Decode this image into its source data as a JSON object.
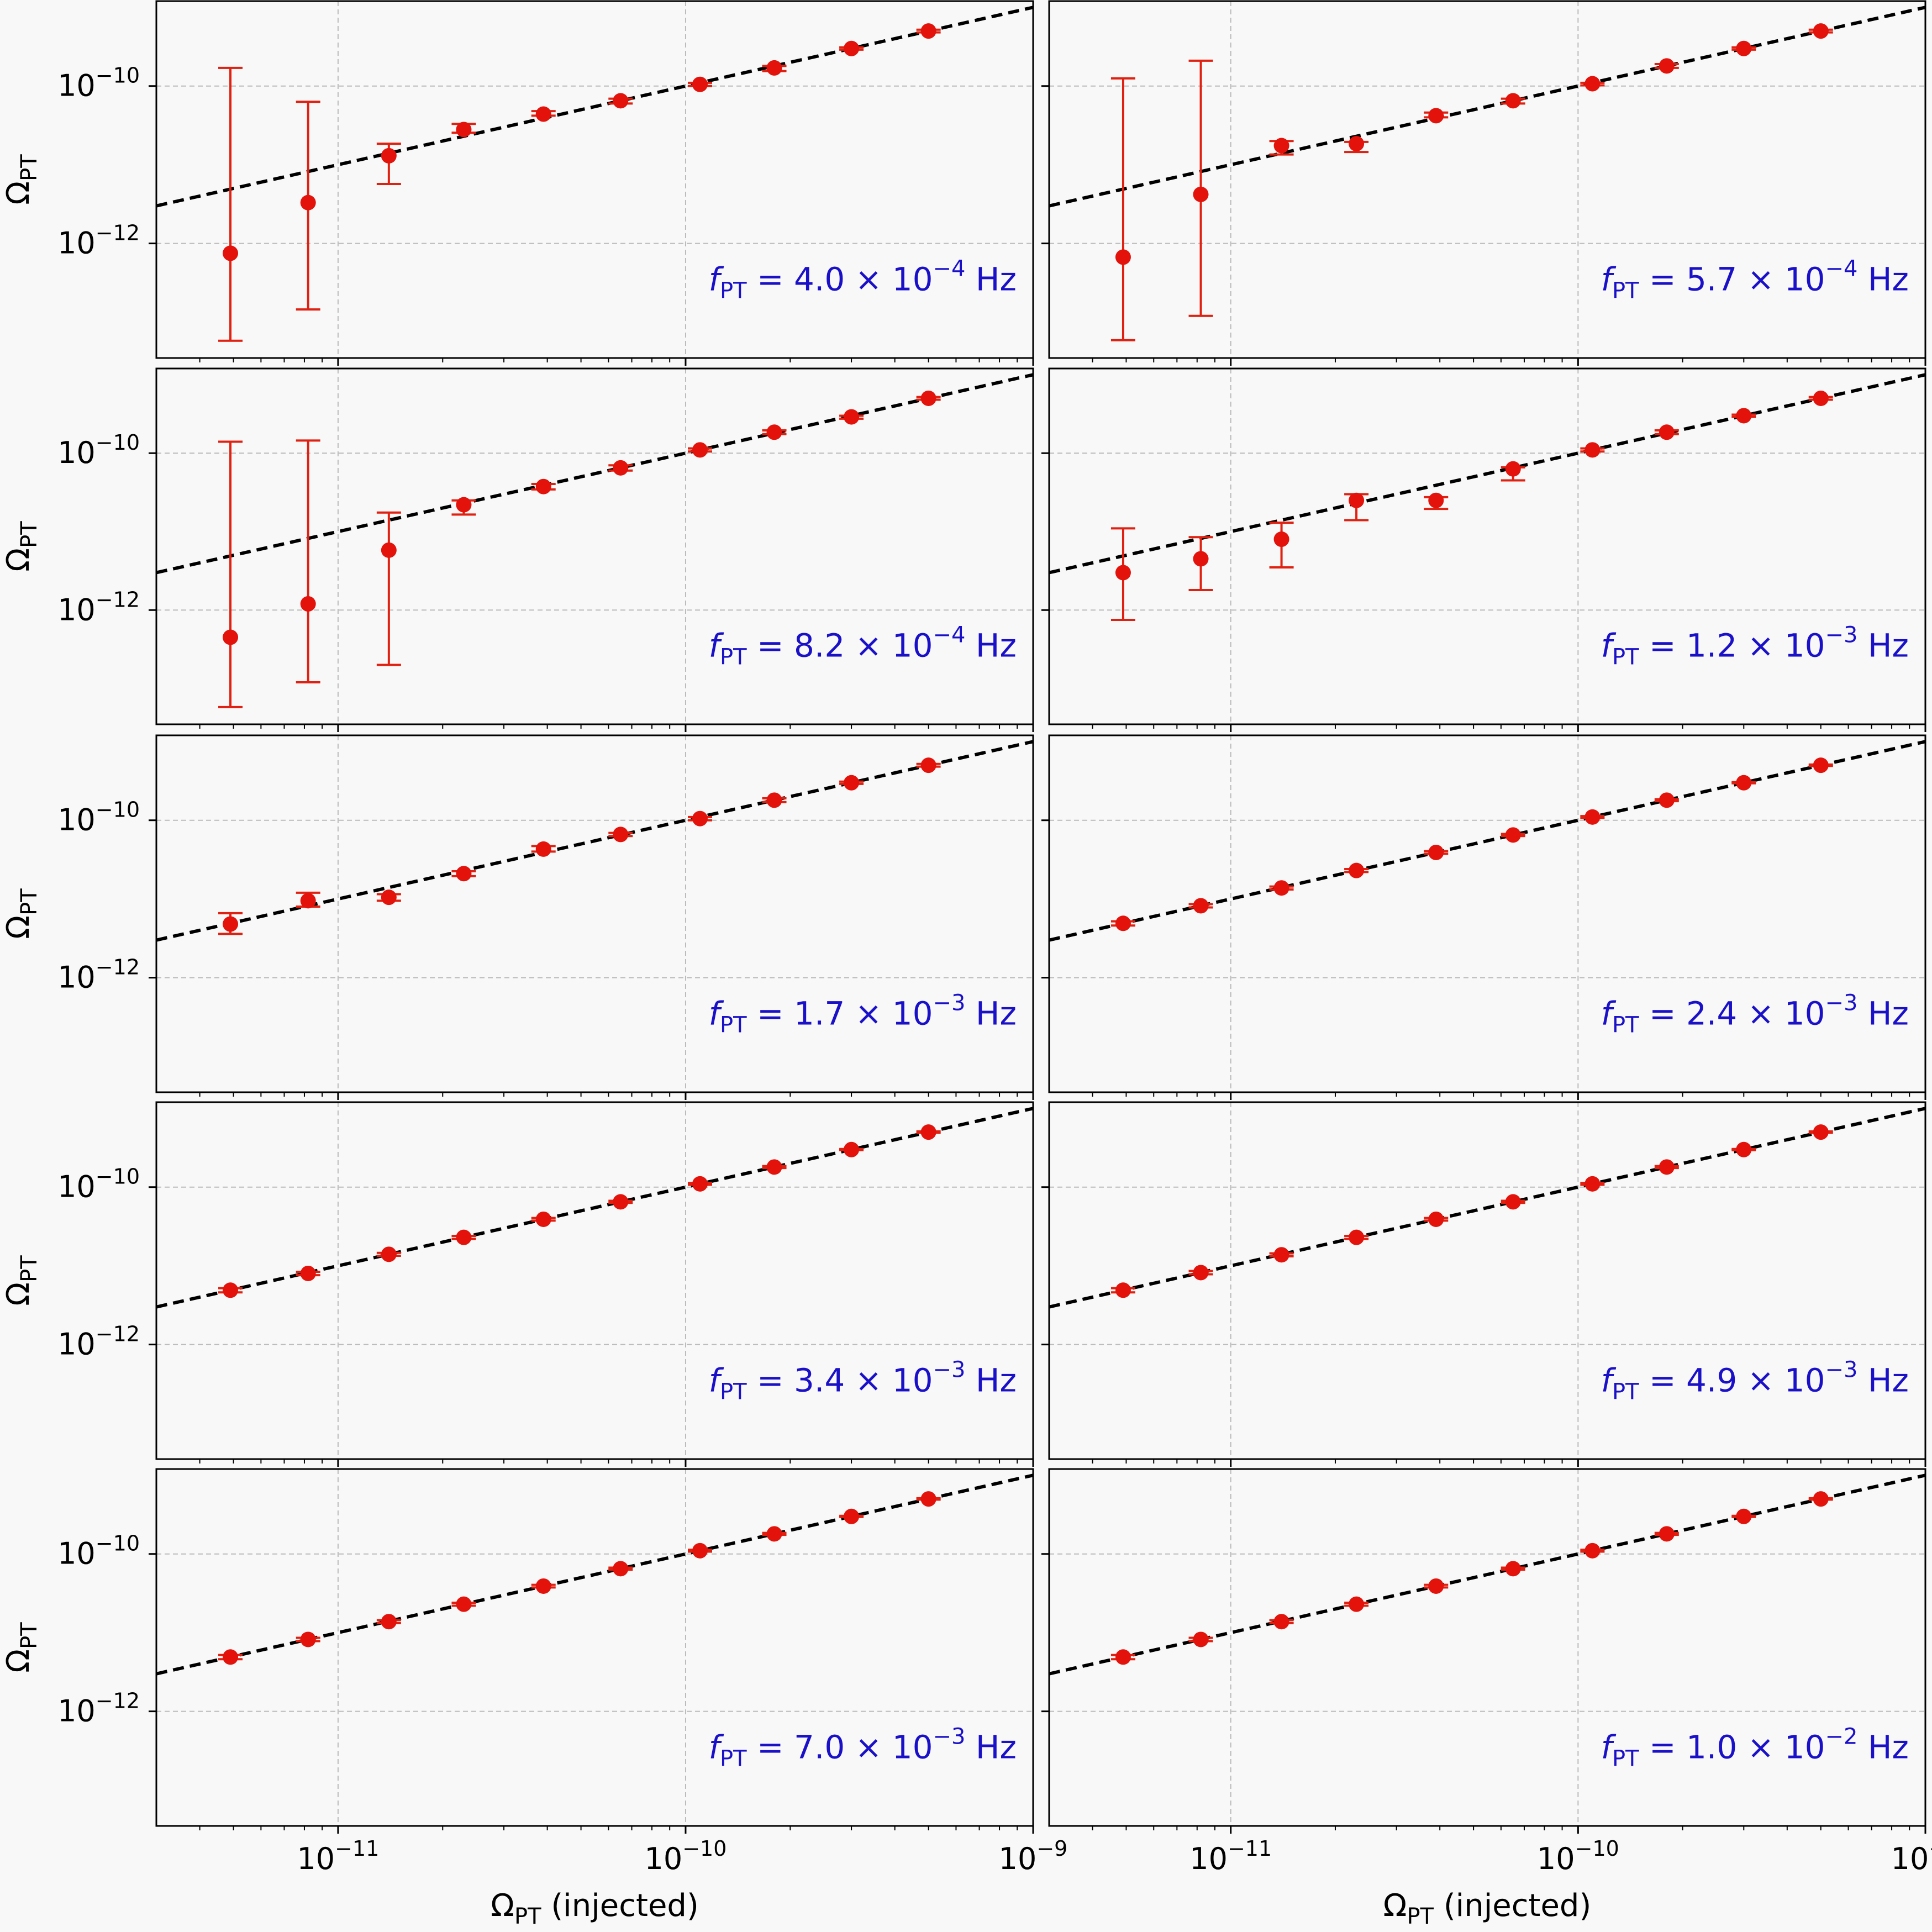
{
  "style": {
    "point_color": "#e3120b",
    "errorbar_color": "#e02010",
    "fit_line_color": "#000000",
    "annotation_color": "#1a10c8",
    "grid_color": "#bbbbbb",
    "background": "#f8f8f8"
  },
  "chart_data": {
    "type": "scatter",
    "layout": "5 rows x 2 columns of panels, shared x axis per column",
    "x_scale": "log",
    "y_scale": "log",
    "xlim": [
      3e-12,
      1e-09
    ],
    "ylim": [
      3.5e-14,
      1.2e-09
    ],
    "grid": true,
    "x_ticks": [
      1e-11,
      1e-10,
      1e-09
    ],
    "x_tick_labels": [
      {
        "base": "10",
        "exp": "−11"
      },
      {
        "base": "10",
        "exp": "−10"
      },
      {
        "base": "10",
        "exp": "−9"
      }
    ],
    "y_ticks": [
      1e-10,
      1e-12
    ],
    "y_tick_labels": [
      {
        "base": "10",
        "exp": "−10"
      },
      {
        "base": "10",
        "exp": "−12"
      }
    ],
    "xlabel": {
      "main": "Ω",
      "sub": "PT",
      "rest": " (injected)"
    },
    "ylabel": {
      "main": "Ω",
      "sub": "PT"
    },
    "fit_line": {
      "style": "dashed",
      "x": [
        3e-12,
        1e-09
      ],
      "y": [
        3e-12,
        1e-09
      ]
    },
    "panels": [
      {
        "annotation": {
          "f": "f",
          "sub": "PT",
          "eq": " = 4.0 × 10",
          "exp": "−4",
          "unit": " Hz"
        },
        "points": [
          {
            "x": 4.9e-12,
            "y": 7.5e-13,
            "lo": 5.8e-14,
            "hi": 1.7e-10
          },
          {
            "x": 8.2e-12,
            "y": 3.3e-12,
            "lo": 1.45e-13,
            "hi": 6.3e-11
          },
          {
            "x": 1.4e-11,
            "y": 1.3e-11,
            "lo": 5.7e-12,
            "hi": 1.85e-11
          },
          {
            "x": 2.3e-11,
            "y": 2.8e-11,
            "lo": 2.55e-11,
            "hi": 3.3e-11
          },
          {
            "x": 3.9e-11,
            "y": 4.4e-11,
            "lo": 4.2e-11,
            "hi": 4.8e-11
          },
          {
            "x": 6.5e-11,
            "y": 6.5e-11,
            "lo": 6e-11,
            "hi": 6.9e-11
          },
          {
            "x": 1.1e-10,
            "y": 1.05e-10,
            "lo": 1e-10,
            "hi": 1.1e-10
          },
          {
            "x": 1.8e-10,
            "y": 1.7e-10,
            "lo": 1.55e-10,
            "hi": 1.8e-10
          },
          {
            "x": 3e-10,
            "y": 3e-10,
            "lo": 2.9e-10,
            "hi": 3.1e-10
          },
          {
            "x": 5e-10,
            "y": 5e-10,
            "lo": 4.8e-10,
            "hi": 5.2e-10
          }
        ]
      },
      {
        "annotation": {
          "f": "f",
          "sub": "PT",
          "eq": " = 5.7 × 10",
          "exp": "−4",
          "unit": " Hz"
        },
        "points": [
          {
            "x": 4.9e-12,
            "y": 6.7e-13,
            "lo": 5.9e-14,
            "hi": 1.25e-10
          },
          {
            "x": 8.2e-12,
            "y": 4.2e-12,
            "lo": 1.2e-13,
            "hi": 2.1e-10
          },
          {
            "x": 1.4e-11,
            "y": 1.75e-11,
            "lo": 1.35e-11,
            "hi": 2e-11
          },
          {
            "x": 2.3e-11,
            "y": 1.85e-11,
            "lo": 1.45e-11,
            "hi": 1.95e-11
          },
          {
            "x": 3.9e-11,
            "y": 4.2e-11,
            "lo": 4e-11,
            "hi": 4.6e-11
          },
          {
            "x": 6.5e-11,
            "y": 6.5e-11,
            "lo": 6e-11,
            "hi": 6.9e-11
          },
          {
            "x": 1.1e-10,
            "y": 1.07e-10,
            "lo": 1.02e-10,
            "hi": 1.1e-10
          },
          {
            "x": 1.8e-10,
            "y": 1.8e-10,
            "lo": 1.7e-10,
            "hi": 1.9e-10
          },
          {
            "x": 3e-10,
            "y": 3e-10,
            "lo": 2.9e-10,
            "hi": 3.1e-10
          },
          {
            "x": 5e-10,
            "y": 5e-10,
            "lo": 4.8e-10,
            "hi": 5.2e-10
          }
        ]
      },
      {
        "annotation": {
          "f": "f",
          "sub": "PT",
          "eq": " = 8.2 × 10",
          "exp": "−4",
          "unit": " Hz"
        },
        "points": [
          {
            "x": 4.9e-12,
            "y": 4.5e-13,
            "lo": 5.8e-14,
            "hi": 1.4e-10
          },
          {
            "x": 8.2e-12,
            "y": 1.2e-12,
            "lo": 1.2e-13,
            "hi": 1.45e-10
          },
          {
            "x": 1.4e-11,
            "y": 5.8e-12,
            "lo": 2e-13,
            "hi": 1.75e-11
          },
          {
            "x": 2.3e-11,
            "y": 2.2e-11,
            "lo": 1.65e-11,
            "hi": 2.5e-11
          },
          {
            "x": 3.9e-11,
            "y": 3.75e-11,
            "lo": 3.45e-11,
            "hi": 4.05e-11
          },
          {
            "x": 6.5e-11,
            "y": 6.5e-11,
            "lo": 6e-11,
            "hi": 7e-11
          },
          {
            "x": 1.1e-10,
            "y": 1.1e-10,
            "lo": 1.05e-10,
            "hi": 1.15e-10
          },
          {
            "x": 1.8e-10,
            "y": 1.85e-10,
            "lo": 1.75e-10,
            "hi": 1.95e-10
          },
          {
            "x": 3e-10,
            "y": 2.9e-10,
            "lo": 2.75e-10,
            "hi": 3e-10
          },
          {
            "x": 5e-10,
            "y": 5e-10,
            "lo": 4.8e-10,
            "hi": 5.2e-10
          }
        ]
      },
      {
        "annotation": {
          "f": "f",
          "sub": "PT",
          "eq": " = 1.2 × 10",
          "exp": "−3",
          "unit": " Hz"
        },
        "points": [
          {
            "x": 4.9e-12,
            "y": 3e-12,
            "lo": 7.5e-13,
            "hi": 1.1e-11
          },
          {
            "x": 8.2e-12,
            "y": 4.5e-12,
            "lo": 1.8e-12,
            "hi": 8.5e-12
          },
          {
            "x": 1.4e-11,
            "y": 8e-12,
            "lo": 3.5e-12,
            "hi": 1.3e-11
          },
          {
            "x": 2.3e-11,
            "y": 2.5e-11,
            "lo": 1.4e-11,
            "hi": 3e-11
          },
          {
            "x": 3.9e-11,
            "y": 2.5e-11,
            "lo": 1.95e-11,
            "hi": 2.75e-11
          },
          {
            "x": 6.5e-11,
            "y": 6.3e-11,
            "lo": 4.5e-11,
            "hi": 6.6e-11
          },
          {
            "x": 1.1e-10,
            "y": 1.1e-10,
            "lo": 1.05e-10,
            "hi": 1.15e-10
          },
          {
            "x": 1.8e-10,
            "y": 1.85e-10,
            "lo": 1.75e-10,
            "hi": 1.95e-10
          },
          {
            "x": 3e-10,
            "y": 3e-10,
            "lo": 2.9e-10,
            "hi": 3.1e-10
          },
          {
            "x": 5e-10,
            "y": 5e-10,
            "lo": 4.8e-10,
            "hi": 5.2e-10
          }
        ]
      },
      {
        "annotation": {
          "f": "f",
          "sub": "PT",
          "eq": " = 1.7 × 10",
          "exp": "−3",
          "unit": " Hz"
        },
        "points": [
          {
            "x": 4.9e-12,
            "y": 4.8e-12,
            "lo": 3.6e-12,
            "hi": 6.6e-12
          },
          {
            "x": 8.2e-12,
            "y": 9.5e-12,
            "lo": 8e-12,
            "hi": 1.2e-11
          },
          {
            "x": 1.4e-11,
            "y": 1.05e-11,
            "lo": 9.5e-12,
            "hi": 1.15e-11
          },
          {
            "x": 2.3e-11,
            "y": 2.1e-11,
            "lo": 1.95e-11,
            "hi": 2.25e-11
          },
          {
            "x": 3.9e-11,
            "y": 4.3e-11,
            "lo": 4e-11,
            "hi": 4.7e-11
          },
          {
            "x": 6.5e-11,
            "y": 6.6e-11,
            "lo": 6.3e-11,
            "hi": 6.9e-11
          },
          {
            "x": 1.1e-10,
            "y": 1.05e-10,
            "lo": 1e-10,
            "hi": 1.1e-10
          },
          {
            "x": 1.8e-10,
            "y": 1.8e-10,
            "lo": 1.7e-10,
            "hi": 1.9e-10
          },
          {
            "x": 3e-10,
            "y": 3e-10,
            "lo": 2.9e-10,
            "hi": 3.1e-10
          },
          {
            "x": 5e-10,
            "y": 5e-10,
            "lo": 4.8e-10,
            "hi": 5.2e-10
          }
        ]
      },
      {
        "annotation": {
          "f": "f",
          "sub": "PT",
          "eq": " = 2.4 × 10",
          "exp": "−3",
          "unit": " Hz"
        },
        "points": [
          {
            "x": 4.9e-12,
            "y": 4.9e-12,
            "lo": 4.6e-12,
            "hi": 5.2e-12
          },
          {
            "x": 8.2e-12,
            "y": 8.2e-12,
            "lo": 7.8e-12,
            "hi": 8.6e-12
          },
          {
            "x": 1.4e-11,
            "y": 1.38e-11,
            "lo": 1.32e-11,
            "hi": 1.44e-11
          },
          {
            "x": 2.3e-11,
            "y": 2.3e-11,
            "lo": 2.2e-11,
            "hi": 2.4e-11
          },
          {
            "x": 3.9e-11,
            "y": 3.9e-11,
            "lo": 3.75e-11,
            "hi": 4.05e-11
          },
          {
            "x": 6.5e-11,
            "y": 6.5e-11,
            "lo": 6.3e-11,
            "hi": 6.7e-11
          },
          {
            "x": 1.1e-10,
            "y": 1.1e-10,
            "lo": 1.07e-10,
            "hi": 1.13e-10
          },
          {
            "x": 1.8e-10,
            "y": 1.8e-10,
            "lo": 1.75e-10,
            "hi": 1.85e-10
          },
          {
            "x": 3e-10,
            "y": 3e-10,
            "lo": 2.95e-10,
            "hi": 3.05e-10
          },
          {
            "x": 5e-10,
            "y": 5e-10,
            "lo": 4.9e-10,
            "hi": 5.1e-10
          }
        ]
      },
      {
        "annotation": {
          "f": "f",
          "sub": "PT",
          "eq": " = 3.4 × 10",
          "exp": "−3",
          "unit": " Hz"
        },
        "points": [
          {
            "x": 4.9e-12,
            "y": 4.9e-12,
            "lo": 4.6e-12,
            "hi": 5.2e-12
          },
          {
            "x": 8.2e-12,
            "y": 8e-12,
            "lo": 7.6e-12,
            "hi": 8.4e-12
          },
          {
            "x": 1.4e-11,
            "y": 1.4e-11,
            "lo": 1.34e-11,
            "hi": 1.46e-11
          },
          {
            "x": 2.3e-11,
            "y": 2.3e-11,
            "lo": 2.2e-11,
            "hi": 2.4e-11
          },
          {
            "x": 3.9e-11,
            "y": 3.9e-11,
            "lo": 3.75e-11,
            "hi": 4.05e-11
          },
          {
            "x": 6.5e-11,
            "y": 6.5e-11,
            "lo": 6.3e-11,
            "hi": 6.7e-11
          },
          {
            "x": 1.1e-10,
            "y": 1.1e-10,
            "lo": 1.07e-10,
            "hi": 1.13e-10
          },
          {
            "x": 1.8e-10,
            "y": 1.8e-10,
            "lo": 1.75e-10,
            "hi": 1.85e-10
          },
          {
            "x": 3e-10,
            "y": 3e-10,
            "lo": 2.95e-10,
            "hi": 3.05e-10
          },
          {
            "x": 5e-10,
            "y": 5e-10,
            "lo": 4.9e-10,
            "hi": 5.1e-10
          }
        ]
      },
      {
        "annotation": {
          "f": "f",
          "sub": "PT",
          "eq": " = 4.9 × 10",
          "exp": "−3",
          "unit": " Hz"
        },
        "points": [
          {
            "x": 4.9e-12,
            "y": 4.9e-12,
            "lo": 4.6e-12,
            "hi": 5.2e-12
          },
          {
            "x": 8.2e-12,
            "y": 8.2e-12,
            "lo": 7.8e-12,
            "hi": 8.6e-12
          },
          {
            "x": 1.4e-11,
            "y": 1.38e-11,
            "lo": 1.32e-11,
            "hi": 1.44e-11
          },
          {
            "x": 2.3e-11,
            "y": 2.3e-11,
            "lo": 2.2e-11,
            "hi": 2.4e-11
          },
          {
            "x": 3.9e-11,
            "y": 3.9e-11,
            "lo": 3.75e-11,
            "hi": 4.05e-11
          },
          {
            "x": 6.5e-11,
            "y": 6.5e-11,
            "lo": 6.3e-11,
            "hi": 6.7e-11
          },
          {
            "x": 1.1e-10,
            "y": 1.1e-10,
            "lo": 1.07e-10,
            "hi": 1.13e-10
          },
          {
            "x": 1.8e-10,
            "y": 1.8e-10,
            "lo": 1.75e-10,
            "hi": 1.85e-10
          },
          {
            "x": 3e-10,
            "y": 3e-10,
            "lo": 2.95e-10,
            "hi": 3.05e-10
          },
          {
            "x": 5e-10,
            "y": 5e-10,
            "lo": 4.9e-10,
            "hi": 5.1e-10
          }
        ]
      },
      {
        "annotation": {
          "f": "f",
          "sub": "PT",
          "eq": " = 7.0 × 10",
          "exp": "−3",
          "unit": " Hz"
        },
        "points": [
          {
            "x": 4.9e-12,
            "y": 4.9e-12,
            "lo": 4.6e-12,
            "hi": 5.2e-12
          },
          {
            "x": 8.2e-12,
            "y": 8.2e-12,
            "lo": 7.8e-12,
            "hi": 8.6e-12
          },
          {
            "x": 1.4e-11,
            "y": 1.38e-11,
            "lo": 1.32e-11,
            "hi": 1.44e-11
          },
          {
            "x": 2.3e-11,
            "y": 2.3e-11,
            "lo": 2.2e-11,
            "hi": 2.4e-11
          },
          {
            "x": 3.9e-11,
            "y": 3.9e-11,
            "lo": 3.75e-11,
            "hi": 4.05e-11
          },
          {
            "x": 6.5e-11,
            "y": 6.5e-11,
            "lo": 6.3e-11,
            "hi": 6.7e-11
          },
          {
            "x": 1.1e-10,
            "y": 1.1e-10,
            "lo": 1.07e-10,
            "hi": 1.13e-10
          },
          {
            "x": 1.8e-10,
            "y": 1.8e-10,
            "lo": 1.75e-10,
            "hi": 1.85e-10
          },
          {
            "x": 3e-10,
            "y": 3e-10,
            "lo": 2.95e-10,
            "hi": 3.05e-10
          },
          {
            "x": 5e-10,
            "y": 5e-10,
            "lo": 4.9e-10,
            "hi": 5.1e-10
          }
        ]
      },
      {
        "annotation": {
          "f": "f",
          "sub": "PT",
          "eq": " = 1.0 × 10",
          "exp": "−2",
          "unit": " Hz"
        },
        "points": [
          {
            "x": 4.9e-12,
            "y": 4.9e-12,
            "lo": 4.6e-12,
            "hi": 5.2e-12
          },
          {
            "x": 8.2e-12,
            "y": 8.2e-12,
            "lo": 7.8e-12,
            "hi": 8.6e-12
          },
          {
            "x": 1.4e-11,
            "y": 1.38e-11,
            "lo": 1.32e-11,
            "hi": 1.44e-11
          },
          {
            "x": 2.3e-11,
            "y": 2.3e-11,
            "lo": 2.2e-11,
            "hi": 2.4e-11
          },
          {
            "x": 3.9e-11,
            "y": 3.9e-11,
            "lo": 3.75e-11,
            "hi": 4.05e-11
          },
          {
            "x": 6.5e-11,
            "y": 6.5e-11,
            "lo": 6.3e-11,
            "hi": 6.7e-11
          },
          {
            "x": 1.1e-10,
            "y": 1.1e-10,
            "lo": 1.07e-10,
            "hi": 1.13e-10
          },
          {
            "x": 1.8e-10,
            "y": 1.8e-10,
            "lo": 1.75e-10,
            "hi": 1.85e-10
          },
          {
            "x": 3e-10,
            "y": 3e-10,
            "lo": 2.95e-10,
            "hi": 3.05e-10
          },
          {
            "x": 5e-10,
            "y": 5e-10,
            "lo": 4.9e-10,
            "hi": 5.1e-10
          }
        ]
      }
    ]
  }
}
